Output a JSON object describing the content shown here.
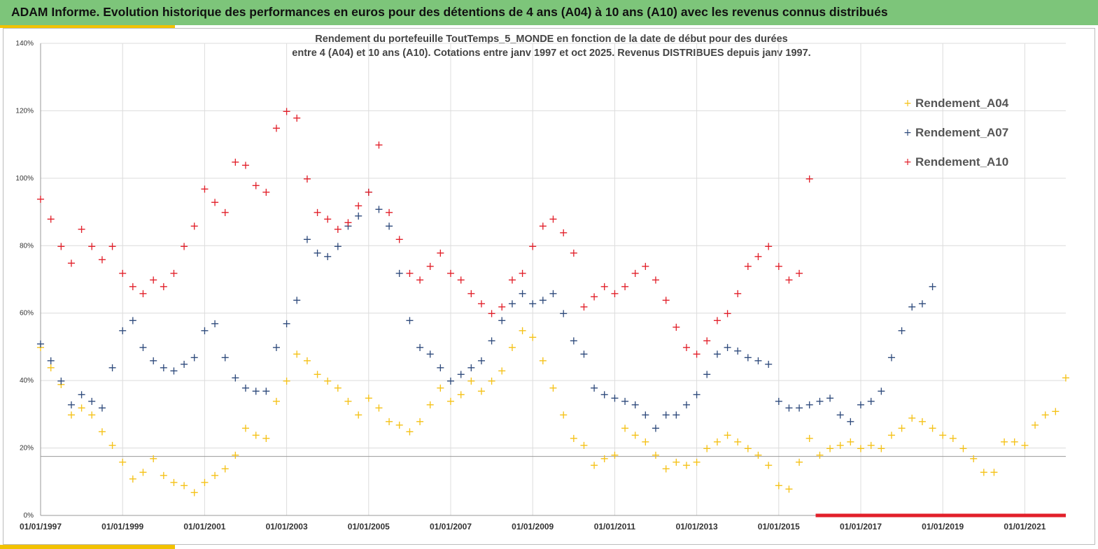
{
  "banner": {
    "title": "ADAM Informe. Evolution historique des performances en euros pour des détentions de 4 ans (A04) à 10 ans (A10) avec les revenus connus distribués"
  },
  "colors": {
    "banner": "#7dc57a",
    "accent": "#f2c200",
    "A04": "#f5c218",
    "A07": "#2f4b7c",
    "A10": "#e2202a"
  },
  "chart_data": {
    "type": "scatter",
    "title": "Rendement du portefeuille ToutTemps_5_MONDE  en fonction de la date de début pour des durées",
    "subtitle": "entre 4 (A04) et 10 ans (A10). Cotations entre janv 1997 et oct 2025. Revenus DISTRIBUES depuis janv 1997.",
    "x_ticks": [
      "01/01/1997",
      "01/01/1999",
      "01/01/2001",
      "01/01/2003",
      "01/01/2005",
      "01/01/2007",
      "01/01/2009",
      "01/01/2011",
      "01/01/2013",
      "01/01/2015",
      "01/01/2017",
      "01/01/2019",
      "01/01/2021"
    ],
    "y_ticks": [
      "0%",
      "20%",
      "40%",
      "60%",
      "80%",
      "100%",
      "120%",
      "140%"
    ],
    "xlim": [
      1997.0,
      2022.0
    ],
    "ylim": [
      0,
      140
    ],
    "grid": true,
    "legend_position": "top-right",
    "reference_line_y": 17.5,
    "series": [
      {
        "name": "Rendement_A04",
        "marker": "+",
        "x": [
          1997.0,
          1997.25,
          1997.5,
          1997.75,
          1998.0,
          1998.25,
          1998.5,
          1998.75,
          1999.0,
          1999.25,
          1999.5,
          1999.75,
          2000.0,
          2000.25,
          2000.5,
          2000.75,
          2001.0,
          2001.25,
          2001.5,
          2001.75,
          2002.0,
          2002.25,
          2002.5,
          2002.75,
          2003.0,
          2003.25,
          2003.5,
          2003.75,
          2004.0,
          2004.25,
          2004.5,
          2004.75,
          2005.0,
          2005.25,
          2005.5,
          2005.75,
          2006.0,
          2006.25,
          2006.5,
          2006.75,
          2007.0,
          2007.25,
          2007.5,
          2007.75,
          2008.0,
          2008.25,
          2008.5,
          2008.75,
          2009.0,
          2009.25,
          2009.5,
          2009.75,
          2010.0,
          2010.25,
          2010.5,
          2010.75,
          2011.0,
          2011.25,
          2011.5,
          2011.75,
          2012.0,
          2012.25,
          2012.5,
          2012.75,
          2013.0,
          2013.25,
          2013.5,
          2013.75,
          2014.0,
          2014.25,
          2014.5,
          2014.75,
          2015.0,
          2015.25,
          2015.5,
          2015.75,
          2016.0,
          2016.25,
          2016.5,
          2016.75,
          2017.0,
          2017.25,
          2017.5,
          2017.75,
          2018.0,
          2018.25,
          2018.5,
          2018.75,
          2019.0,
          2019.25,
          2019.5,
          2019.75,
          2020.0,
          2020.25,
          2020.5,
          2020.75,
          2021.0,
          2021.25,
          2021.5,
          2021.75,
          2022.0
        ],
        "y": [
          50,
          44,
          39,
          30,
          32,
          30,
          25,
          21,
          16,
          11,
          13,
          17,
          12,
          10,
          9,
          7,
          10,
          12,
          14,
          18,
          26,
          24,
          23,
          34,
          40,
          48,
          46,
          42,
          40,
          38,
          34,
          30,
          35,
          32,
          28,
          27,
          25,
          28,
          33,
          38,
          34,
          36,
          40,
          37,
          40,
          43,
          50,
          55,
          53,
          46,
          38,
          30,
          23,
          21,
          15,
          17,
          18,
          26,
          24,
          22,
          18,
          14,
          16,
          15,
          16,
          20,
          22,
          24,
          22,
          20,
          18,
          15,
          9,
          8,
          16,
          23,
          18,
          20,
          21,
          22,
          20,
          21,
          20,
          24,
          26,
          29,
          28,
          26,
          24,
          23,
          20,
          17,
          13,
          13,
          22,
          22,
          21,
          27,
          30,
          31,
          41
        ]
      },
      {
        "name": "Rendement_A07",
        "marker": "+",
        "x": [
          1997.0,
          1997.25,
          1997.5,
          1997.75,
          1998.0,
          1998.25,
          1998.5,
          1998.75,
          1999.0,
          1999.25,
          1999.5,
          1999.75,
          2000.0,
          2000.25,
          2000.5,
          2000.75,
          2001.0,
          2001.25,
          2001.5,
          2001.75,
          2002.0,
          2002.25,
          2002.5,
          2002.75,
          2003.0,
          2003.25,
          2003.5,
          2003.75,
          2004.0,
          2004.25,
          2004.5,
          2004.75,
          2005.0,
          2005.25,
          2005.5,
          2005.75,
          2006.0,
          2006.25,
          2006.5,
          2006.75,
          2007.0,
          2007.25,
          2007.5,
          2007.75,
          2008.0,
          2008.25,
          2008.5,
          2008.75,
          2009.0,
          2009.25,
          2009.5,
          2009.75,
          2010.0,
          2010.25,
          2010.5,
          2010.75,
          2011.0,
          2011.25,
          2011.5,
          2011.75,
          2012.0,
          2012.25,
          2012.5,
          2012.75,
          2013.0,
          2013.25,
          2013.5,
          2013.75,
          2014.0,
          2014.25,
          2014.5,
          2014.75,
          2015.0,
          2015.25,
          2015.5,
          2015.75,
          2016.0,
          2016.25,
          2016.5,
          2016.75,
          2017.0,
          2017.25,
          2017.5,
          2017.75,
          2018.0,
          2018.25,
          2018.5,
          2018.75
        ],
        "y": [
          51,
          46,
          40,
          33,
          36,
          34,
          32,
          44,
          55,
          58,
          50,
          46,
          44,
          43,
          45,
          47,
          55,
          57,
          47,
          41,
          38,
          37,
          37,
          50,
          57,
          64,
          82,
          78,
          77,
          80,
          86,
          89,
          96,
          91,
          86,
          72,
          58,
          50,
          48,
          44,
          40,
          42,
          44,
          46,
          52,
          58,
          63,
          66,
          63,
          64,
          66,
          60,
          52,
          48,
          38,
          36,
          35,
          34,
          33,
          30,
          26,
          30,
          30,
          33,
          36,
          42,
          48,
          50,
          49,
          47,
          46,
          45,
          34,
          32,
          32,
          33,
          34,
          35,
          30,
          28,
          33,
          34,
          37,
          47,
          55,
          62,
          63,
          68
        ]
      },
      {
        "name": "Rendement_A10",
        "marker": "+",
        "x": [
          1997.0,
          1997.25,
          1997.5,
          1997.75,
          1998.0,
          1998.25,
          1998.5,
          1998.75,
          1999.0,
          1999.25,
          1999.5,
          1999.75,
          2000.0,
          2000.25,
          2000.5,
          2000.75,
          2001.0,
          2001.25,
          2001.5,
          2001.75,
          2002.0,
          2002.25,
          2002.5,
          2002.75,
          2003.0,
          2003.25,
          2003.5,
          2003.75,
          2004.0,
          2004.25,
          2004.5,
          2004.75,
          2005.0,
          2005.25,
          2005.5,
          2005.75,
          2006.0,
          2006.25,
          2006.5,
          2006.75,
          2007.0,
          2007.25,
          2007.5,
          2007.75,
          2008.0,
          2008.25,
          2008.5,
          2008.75,
          2009.0,
          2009.25,
          2009.5,
          2009.75,
          2010.0,
          2010.25,
          2010.5,
          2010.75,
          2011.0,
          2011.25,
          2011.5,
          2011.75,
          2012.0,
          2012.25,
          2012.5,
          2012.75,
          2013.0,
          2013.25,
          2013.5,
          2013.75,
          2014.0,
          2014.25,
          2014.5,
          2014.75,
          2015.0,
          2015.25,
          2015.5,
          2015.75
        ],
        "y": [
          94,
          88,
          80,
          75,
          85,
          80,
          76,
          80,
          72,
          68,
          66,
          70,
          68,
          72,
          80,
          86,
          97,
          93,
          90,
          105,
          104,
          98,
          96,
          115,
          120,
          118,
          100,
          90,
          88,
          85,
          87,
          92,
          96,
          110,
          90,
          82,
          72,
          70,
          74,
          78,
          72,
          70,
          66,
          63,
          60,
          62,
          70,
          72,
          80,
          86,
          88,
          84,
          78,
          62,
          65,
          68,
          66,
          68,
          72,
          74,
          70,
          64,
          56,
          50,
          48,
          52,
          58,
          60,
          66,
          74,
          77,
          80,
          74,
          70,
          72,
          100
        ]
      }
    ]
  }
}
